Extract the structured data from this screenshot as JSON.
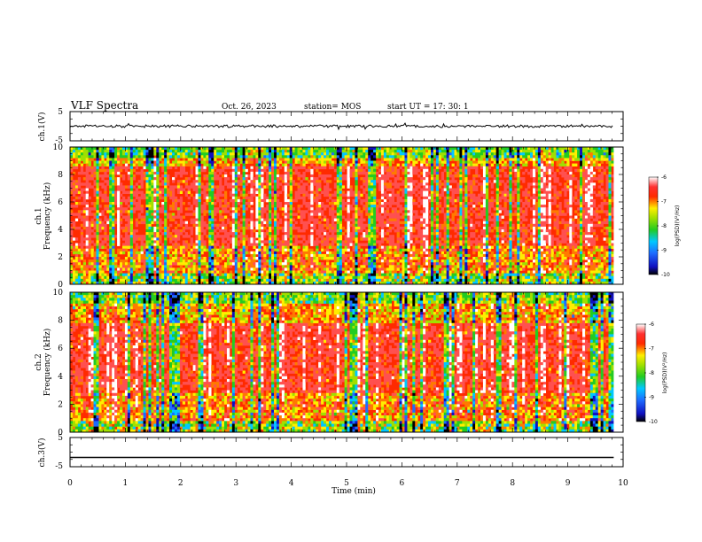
{
  "header": {
    "title": "VLF Spectra",
    "date": "Oct. 26, 2023",
    "station": "station= MOS",
    "start": "start UT = 17: 30: 1"
  },
  "chart_data": [
    {
      "type": "line",
      "name": "ch1-waveform",
      "ylabel": "ch.1(V)",
      "ylim": [
        -5,
        5
      ],
      "yticks": [
        "5",
        "-5"
      ],
      "level": 0,
      "color": "#000000"
    },
    {
      "type": "heatmap",
      "name": "ch1-spectrogram",
      "ylabel": "Frequency (kHz)",
      "ylabel_channel": "ch.1",
      "ylim": [
        0,
        10
      ],
      "yticks": [
        "0",
        "2",
        "4",
        "6",
        "8",
        "10"
      ],
      "colorbar": {
        "label": "log(PSD)(V²/Hz)",
        "range": [
          -10,
          -6
        ],
        "ticks": [
          "-6",
          "-7",
          "-8",
          "-9",
          "-10"
        ]
      }
    },
    {
      "type": "heatmap",
      "name": "ch2-spectrogram",
      "ylabel": "Frequency (kHz)",
      "ylabel_channel": "ch.2",
      "ylim": [
        0,
        10
      ],
      "yticks": [
        "0",
        "2",
        "4",
        "6",
        "8",
        "10"
      ],
      "colorbar": {
        "label": "log(PSD)(V²/Hz)",
        "range": [
          -10,
          -6
        ],
        "ticks": [
          "-6",
          "-7",
          "-8",
          "-9",
          "-10"
        ]
      }
    },
    {
      "type": "line",
      "name": "ch3-waveform",
      "ylabel": "ch.3(V)",
      "ylim": [
        -5,
        5
      ],
      "yticks": [
        "5",
        "-5"
      ],
      "level": -1.8,
      "color": "#000000"
    }
  ],
  "xaxis": {
    "label": "Time (min)",
    "range": [
      0,
      10
    ],
    "ticks": [
      "0",
      "1",
      "2",
      "3",
      "4",
      "5",
      "6",
      "7",
      "8",
      "9",
      "10"
    ],
    "data_end": 9.83
  }
}
